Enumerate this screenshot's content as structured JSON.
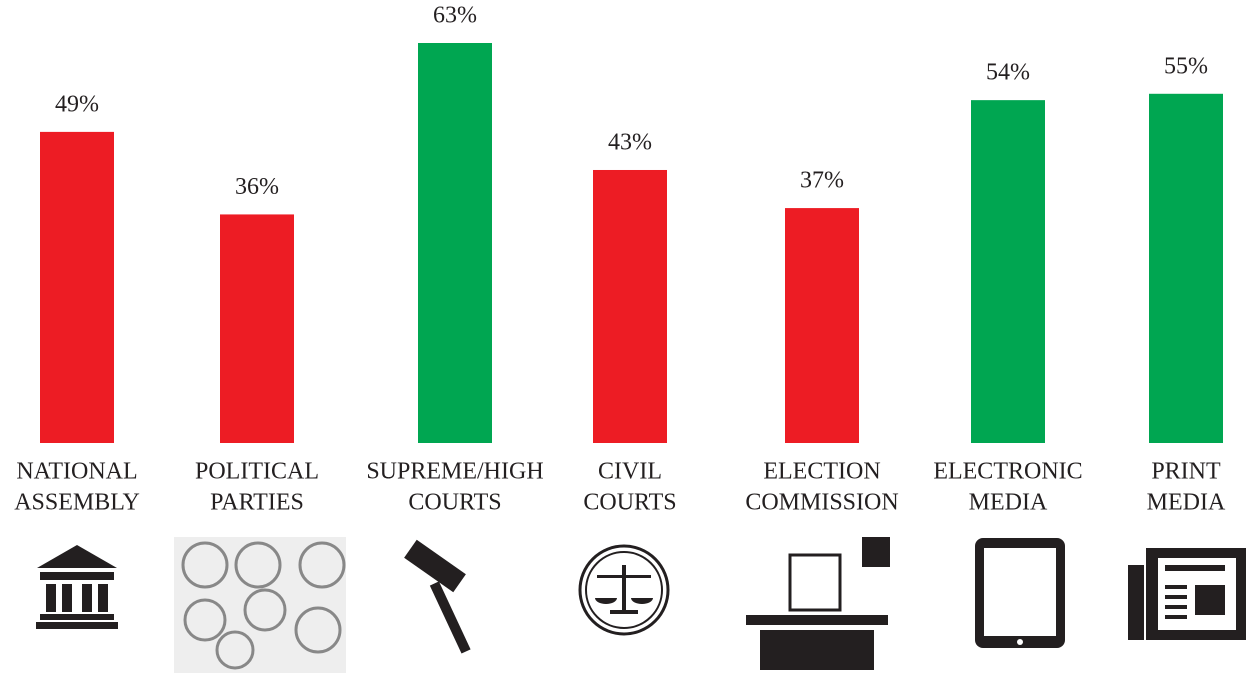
{
  "chart_data": {
    "type": "bar",
    "categories": [
      [
        "NATIONAL",
        "ASSEMBLY"
      ],
      [
        "POLITICAL",
        "PARTIES"
      ],
      [
        "SUPREME/HIGH",
        "COURTS"
      ],
      [
        "CIVIL",
        "COURTS"
      ],
      [
        "ELECTION",
        "COMMISSION"
      ],
      [
        "ELECTRONIC",
        "MEDIA"
      ],
      [
        "PRINT",
        "MEDIA"
      ]
    ],
    "values": [
      49,
      36,
      63,
      43,
      37,
      54,
      55
    ],
    "value_labels": [
      "49%",
      "36%",
      "63%",
      "43%",
      "37%",
      "54%",
      "55%"
    ],
    "colors": [
      "#ed1c24",
      "#ed1c24",
      "#00a651",
      "#ed1c24",
      "#ed1c24",
      "#00a651",
      "#00a651"
    ]
  }
}
